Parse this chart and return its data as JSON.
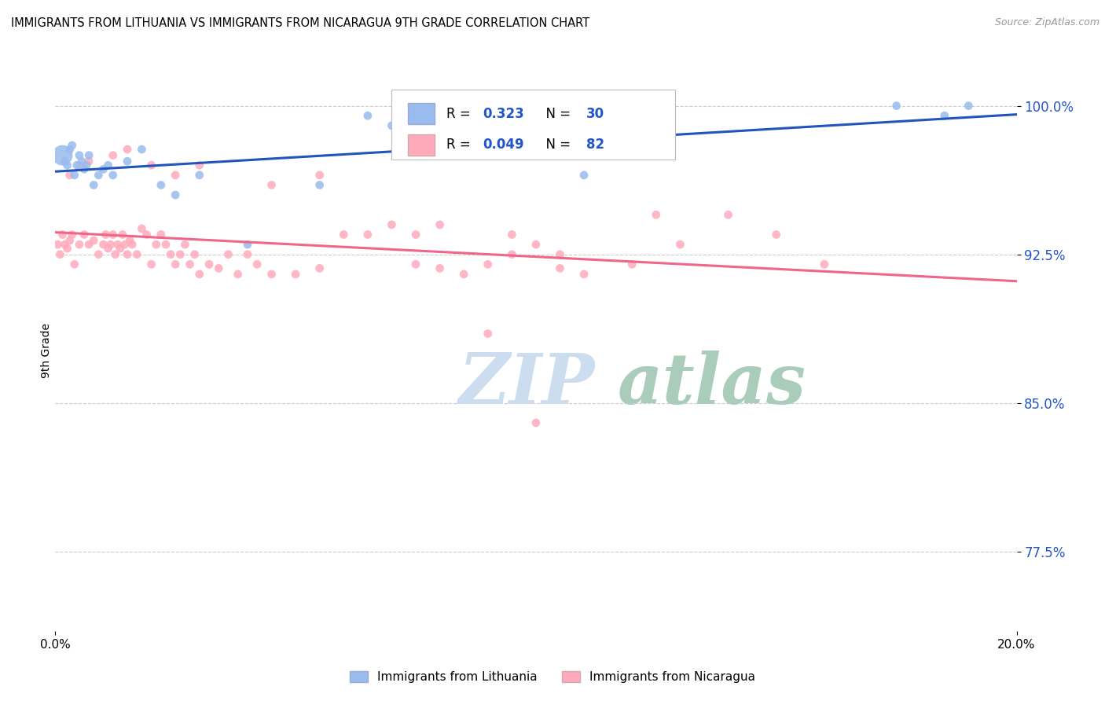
{
  "title": "IMMIGRANTS FROM LITHUANIA VS IMMIGRANTS FROM NICARAGUA 9TH GRADE CORRELATION CHART",
  "source": "Source: ZipAtlas.com",
  "ylabel": "9th Grade",
  "yticks": [
    77.5,
    85.0,
    92.5,
    100.0
  ],
  "ytick_labels": [
    "77.5%",
    "85.0%",
    "92.5%",
    "100.0%"
  ],
  "xmin": 0.0,
  "xmax": 20.0,
  "ymin": 73.5,
  "ymax": 101.8,
  "legend_lithuania": "Immigrants from Lithuania",
  "legend_nicaragua": "Immigrants from Nicaragua",
  "R_lithuania": 0.323,
  "N_lithuania": 30,
  "R_nicaragua": 0.049,
  "N_nicaragua": 82,
  "blue_color": "#99BBEE",
  "pink_color": "#FFAABB",
  "blue_line_color": "#2255BB",
  "pink_line_color": "#EE6688",
  "watermark_zip": "ZIP",
  "watermark_atlas": "atlas",
  "watermark_color_zip": "#CCDDF0",
  "watermark_color_atlas": "#AACCBB",
  "lithuania_x": [
    0.15,
    0.2,
    0.25,
    0.3,
    0.35,
    0.4,
    0.45,
    0.5,
    0.55,
    0.6,
    0.65,
    0.7,
    0.8,
    0.9,
    1.0,
    1.1,
    1.2,
    1.5,
    1.8,
    2.2,
    2.5,
    3.0,
    4.0,
    5.5,
    6.5,
    7.0,
    11.0,
    17.5,
    18.5,
    19.0
  ],
  "lithuania_y": [
    97.5,
    97.2,
    97.0,
    97.8,
    98.0,
    96.5,
    97.0,
    97.5,
    97.2,
    96.8,
    97.0,
    97.5,
    96.0,
    96.5,
    96.8,
    97.0,
    96.5,
    97.2,
    97.8,
    96.0,
    95.5,
    96.5,
    93.0,
    96.0,
    99.5,
    99.0,
    96.5,
    100.0,
    99.5,
    100.0
  ],
  "lithuania_sizes": [
    350,
    60,
    60,
    60,
    60,
    60,
    60,
    60,
    60,
    60,
    60,
    60,
    60,
    60,
    60,
    60,
    60,
    60,
    60,
    60,
    60,
    60,
    60,
    60,
    60,
    60,
    60,
    60,
    60,
    60
  ],
  "nicaragua_x": [
    0.05,
    0.1,
    0.15,
    0.2,
    0.25,
    0.3,
    0.35,
    0.4,
    0.5,
    0.6,
    0.7,
    0.8,
    0.9,
    1.0,
    1.05,
    1.1,
    1.15,
    1.2,
    1.25,
    1.3,
    1.35,
    1.4,
    1.45,
    1.5,
    1.55,
    1.6,
    1.7,
    1.8,
    1.9,
    2.0,
    2.1,
    2.2,
    2.3,
    2.4,
    2.5,
    2.6,
    2.7,
    2.8,
    2.9,
    3.0,
    3.2,
    3.4,
    3.6,
    3.8,
    4.0,
    4.2,
    4.5,
    5.0,
    5.5,
    6.0,
    6.5,
    7.0,
    7.5,
    8.0,
    8.5,
    9.0,
    9.5,
    10.0,
    10.5,
    11.0,
    12.0,
    12.5,
    13.0,
    14.0,
    15.0,
    16.0,
    0.3,
    0.5,
    0.7,
    1.2,
    1.5,
    2.0,
    2.5,
    3.0,
    4.5,
    5.5,
    7.5,
    8.0,
    9.5,
    10.5,
    9.0,
    10.0
  ],
  "nicaragua_y": [
    93.0,
    92.5,
    93.5,
    93.0,
    92.8,
    93.2,
    93.5,
    92.0,
    93.0,
    93.5,
    93.0,
    93.2,
    92.5,
    93.0,
    93.5,
    92.8,
    93.0,
    93.5,
    92.5,
    93.0,
    92.8,
    93.5,
    93.0,
    92.5,
    93.2,
    93.0,
    92.5,
    93.8,
    93.5,
    92.0,
    93.0,
    93.5,
    93.0,
    92.5,
    92.0,
    92.5,
    93.0,
    92.0,
    92.5,
    91.5,
    92.0,
    91.8,
    92.5,
    91.5,
    92.5,
    92.0,
    91.5,
    91.5,
    91.8,
    93.5,
    93.5,
    94.0,
    93.5,
    94.0,
    91.5,
    92.0,
    93.5,
    93.0,
    92.5,
    91.5,
    92.0,
    94.5,
    93.0,
    94.5,
    93.5,
    92.0,
    96.5,
    97.0,
    97.2,
    97.5,
    97.8,
    97.0,
    96.5,
    97.0,
    96.0,
    96.5,
    92.0,
    91.8,
    92.5,
    91.8,
    88.5,
    84.0
  ],
  "nicaragua_sizes": [
    60,
    60,
    60,
    60,
    60,
    60,
    60,
    60,
    60,
    60,
    60,
    60,
    60,
    60,
    60,
    60,
    60,
    60,
    60,
    60,
    60,
    60,
    60,
    60,
    60,
    60,
    60,
    60,
    60,
    60,
    60,
    60,
    60,
    60,
    60,
    60,
    60,
    60,
    60,
    60,
    60,
    60,
    60,
    60,
    60,
    60,
    60,
    60,
    60,
    60,
    60,
    60,
    60,
    60,
    60,
    60,
    60,
    60,
    60,
    60,
    60,
    60,
    60,
    60,
    60,
    60,
    60,
    60,
    60,
    60,
    60,
    60,
    60,
    60,
    60,
    60,
    60,
    60,
    60,
    60,
    60,
    60
  ]
}
